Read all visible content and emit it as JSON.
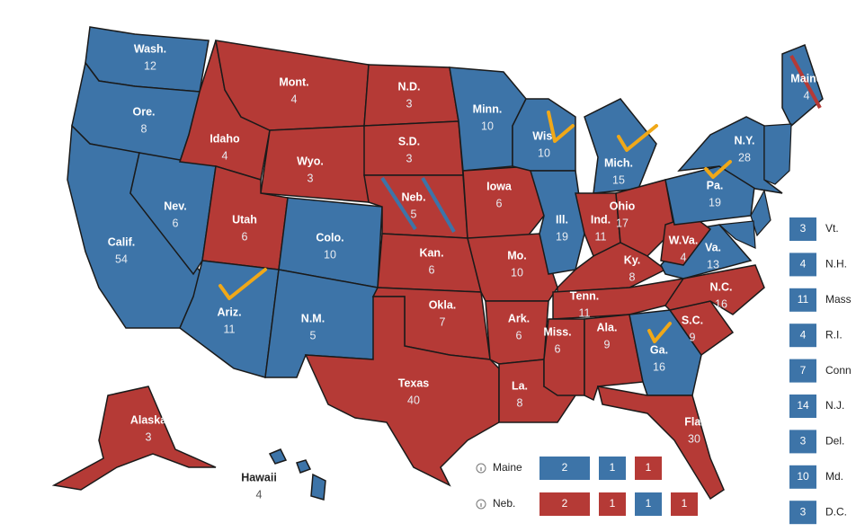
{
  "map": {
    "states": [
      {
        "label": "Wash.",
        "votes": 12,
        "color": "#3d74a8"
      },
      {
        "label": "Ore.",
        "votes": 8,
        "color": "#3d74a8"
      },
      {
        "label": "Calif.",
        "votes": 54,
        "color": "#3d74a8"
      },
      {
        "label": "Nev.",
        "votes": 6,
        "color": "#3d74a8"
      },
      {
        "label": "Idaho",
        "votes": 4,
        "color": "#b53a36"
      },
      {
        "label": "Mont.",
        "votes": 4,
        "color": "#b53a36"
      },
      {
        "label": "Wyo.",
        "votes": 3,
        "color": "#b53a36"
      },
      {
        "label": "Utah",
        "votes": 6,
        "color": "#b53a36"
      },
      {
        "label": "Colo.",
        "votes": 10,
        "color": "#3d74a8"
      },
      {
        "label": "Ariz.",
        "votes": 11,
        "color": "#3d74a8"
      },
      {
        "label": "N.M.",
        "votes": 5,
        "color": "#3d74a8"
      },
      {
        "label": "N.D.",
        "votes": 3,
        "color": "#b53a36"
      },
      {
        "label": "S.D.",
        "votes": 3,
        "color": "#b53a36"
      },
      {
        "label": "Neb.",
        "votes": 5,
        "color": "#b53a36"
      },
      {
        "label": "Kan.",
        "votes": 6,
        "color": "#b53a36"
      },
      {
        "label": "Okla.",
        "votes": 7,
        "color": "#b53a36"
      },
      {
        "label": "Texas",
        "votes": 40,
        "color": "#b53a36"
      },
      {
        "label": "Minn.",
        "votes": 10,
        "color": "#3d74a8"
      },
      {
        "label": "Iowa",
        "votes": 6,
        "color": "#b53a36"
      },
      {
        "label": "Mo.",
        "votes": 10,
        "color": "#b53a36"
      },
      {
        "label": "Ark.",
        "votes": 6,
        "color": "#b53a36"
      },
      {
        "label": "La.",
        "votes": 8,
        "color": "#b53a36"
      },
      {
        "label": "Wis.",
        "votes": 10,
        "color": "#3d74a8"
      },
      {
        "label": "Mich.",
        "votes": 15,
        "color": "#3d74a8"
      },
      {
        "label": "Ill.",
        "votes": 19,
        "color": "#3d74a8"
      },
      {
        "label": "Ind.",
        "votes": 11,
        "color": "#b53a36"
      },
      {
        "label": "Ohio",
        "votes": 17,
        "color": "#b53a36"
      },
      {
        "label": "Ky.",
        "votes": 8,
        "color": "#b53a36"
      },
      {
        "label": "Tenn.",
        "votes": 11,
        "color": "#b53a36"
      },
      {
        "label": "Miss.",
        "votes": 6,
        "color": "#b53a36"
      },
      {
        "label": "Ala.",
        "votes": 9,
        "color": "#b53a36"
      },
      {
        "label": "Ga.",
        "votes": 16,
        "color": "#3d74a8"
      },
      {
        "label": "Fla.",
        "votes": 30,
        "color": "#b53a36"
      },
      {
        "label": "S.C.",
        "votes": 9,
        "color": "#b53a36"
      },
      {
        "label": "N.C.",
        "votes": 16,
        "color": "#b53a36"
      },
      {
        "label": "Va.",
        "votes": 13,
        "color": "#3d74a8"
      },
      {
        "label": "W.Va.",
        "votes": 4,
        "color": "#b53a36"
      },
      {
        "label": "Pa.",
        "votes": 19,
        "color": "#3d74a8"
      },
      {
        "label": "N.Y.",
        "votes": 28,
        "color": "#3d74a8"
      },
      {
        "label": "Maine",
        "votes": 4,
        "color": "#3d74a8"
      },
      {
        "label": "Alaska",
        "votes": 3,
        "color": "#b53a36"
      },
      {
        "label": "Hawaii",
        "votes": 4,
        "color": "#3d74a8"
      }
    ],
    "small_states": [
      {
        "votes": 3,
        "label": "Vt.",
        "color": "#3d74a8"
      },
      {
        "votes": 4,
        "label": "N.H.",
        "color": "#3d74a8"
      },
      {
        "votes": 11,
        "label": "Mass",
        "color": "#3d74a8"
      },
      {
        "votes": 4,
        "label": "R.I.",
        "color": "#3d74a8"
      },
      {
        "votes": 7,
        "label": "Conn",
        "color": "#3d74a8"
      },
      {
        "votes": 14,
        "label": "N.J.",
        "color": "#3d74a8"
      },
      {
        "votes": 3,
        "label": "Del.",
        "color": "#3d74a8"
      },
      {
        "votes": 10,
        "label": "Md.",
        "color": "#3d74a8"
      },
      {
        "votes": 3,
        "label": "D.C.",
        "color": "#3d74a8"
      }
    ],
    "splits": [
      {
        "label": "Maine",
        "districts": [
          {
            "votes": 2,
            "color": "#3d74a8"
          },
          {
            "votes": 1,
            "color": "#3d74a8"
          },
          {
            "votes": 1,
            "color": "#b53a36"
          }
        ]
      },
      {
        "label": "Neb.",
        "districts": [
          {
            "votes": 2,
            "color": "#b53a36"
          },
          {
            "votes": 1,
            "color": "#b53a36"
          },
          {
            "votes": 1,
            "color": "#3d74a8"
          },
          {
            "votes": 1,
            "color": "#b53a36"
          }
        ]
      }
    ]
  }
}
